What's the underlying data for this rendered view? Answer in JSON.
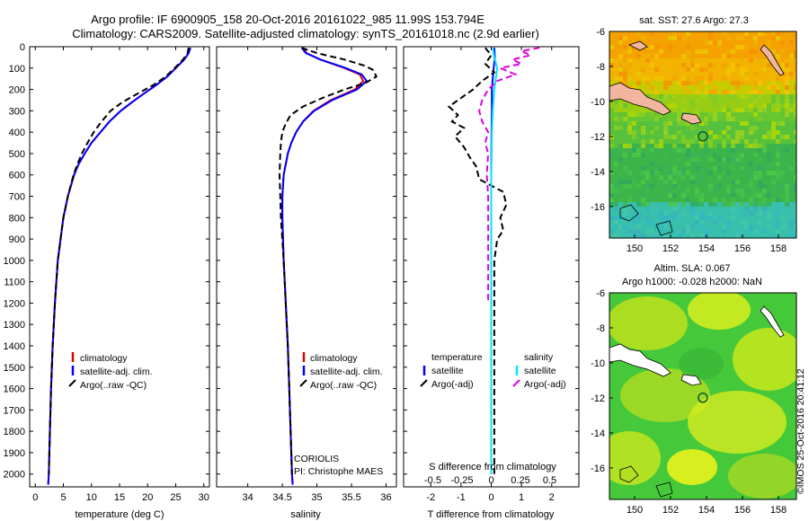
{
  "title": {
    "line1": "Argo profile: IF 6900905_158 20-Oct-2016 20161022_985 11.99S 153.794E",
    "line2": "Climatology: CARS2009. Satellite-adjusted climatology: synTS_20161018.nc (2.9d earlier)"
  },
  "depth_axis": {
    "ticks": [
      0,
      100,
      200,
      300,
      400,
      500,
      600,
      700,
      800,
      900,
      1000,
      1100,
      1200,
      1300,
      1400,
      1500,
      1600,
      1700,
      1800,
      1900,
      2000
    ],
    "range": [
      0,
      2060
    ]
  },
  "colors": {
    "climatology": "#e00000",
    "satellite": "#0000ff",
    "argo": "#000000",
    "sal_sat": "#00e5ff",
    "sal_argo": "#e000e0"
  },
  "chart_data": [
    {
      "type": "line",
      "xlabel": "temperature (deg C)",
      "xlim": [
        -1,
        31
      ],
      "xticks": [
        0,
        5,
        10,
        15,
        20,
        25,
        30
      ],
      "legend": [
        "climatology",
        "satellite-adj. clim.",
        "Argo(..raw -QC)"
      ],
      "series": [
        {
          "name": "climatology",
          "color": "#e00000",
          "depth": [
            5,
            30,
            60,
            100,
            140,
            180,
            220,
            260,
            300,
            350,
            400,
            450,
            500,
            550,
            600,
            700,
            800,
            900,
            1000,
            1200,
            1400,
            1600,
            1800,
            2000,
            2050
          ],
          "values": [
            27.6,
            27.3,
            26.5,
            25.0,
            23.5,
            21.5,
            19.3,
            17.2,
            15.2,
            13.2,
            11.6,
            10.0,
            8.8,
            7.7,
            6.9,
            5.8,
            5.0,
            4.5,
            4.0,
            3.5,
            3.1,
            2.8,
            2.6,
            2.4,
            2.3
          ]
        },
        {
          "name": "satellite-adj. clim.",
          "color": "#0000ff",
          "depth": [
            5,
            30,
            60,
            100,
            140,
            180,
            220,
            260,
            300,
            350,
            400,
            450,
            500,
            550,
            600,
            700,
            800,
            900,
            1000,
            1200,
            1400,
            1600,
            1800,
            2000,
            2050
          ],
          "values": [
            27.6,
            27.3,
            26.5,
            25.0,
            23.5,
            21.5,
            19.3,
            17.2,
            15.2,
            13.2,
            11.6,
            10.0,
            8.8,
            7.7,
            6.9,
            5.8,
            5.0,
            4.5,
            4.0,
            3.5,
            3.1,
            2.8,
            2.6,
            2.4,
            2.3
          ]
        },
        {
          "name": "Argo(..raw -QC)",
          "color": "#000000",
          "dashed": true,
          "depth": [
            5,
            30,
            60,
            100,
            140,
            180,
            220,
            260,
            300,
            350,
            400,
            450,
            500,
            550,
            600,
            700,
            800,
            900,
            1000,
            1200,
            1400,
            1600,
            1800,
            2000
          ],
          "values": [
            27.3,
            27.1,
            26.3,
            24.8,
            23.2,
            21.0,
            18.2,
            15.5,
            13.4,
            11.8,
            10.4,
            9.3,
            8.3,
            7.5,
            6.8,
            5.8,
            5.0,
            4.5,
            4.0,
            3.5,
            3.1,
            2.8,
            2.6,
            2.4
          ]
        }
      ]
    },
    {
      "type": "line",
      "xlabel": "salinity",
      "xlim": [
        33.55,
        36.15
      ],
      "xticks": [
        34,
        34.5,
        35,
        35.5,
        36
      ],
      "xticklabels": [
        "34",
        "34.5",
        "35",
        "35.5",
        "36"
      ],
      "legend": [
        "climatology",
        "satellite-adj. clim.",
        "Argo(..raw -QC)"
      ],
      "credit": [
        "CORIOLIS",
        "PI: Christophe MAES"
      ],
      "series": [
        {
          "name": "climatology",
          "color": "#e00000",
          "depth": [
            5,
            30,
            60,
            100,
            130,
            160,
            200,
            250,
            300,
            350,
            400,
            450,
            500,
            600,
            700,
            800,
            1000,
            1200,
            1400,
            1600,
            1800,
            2000,
            2050
          ],
          "values": [
            34.8,
            34.85,
            35.05,
            35.4,
            35.62,
            35.67,
            35.55,
            35.2,
            34.95,
            34.8,
            34.7,
            34.63,
            34.58,
            34.52,
            34.5,
            34.5,
            34.52,
            34.55,
            34.58,
            34.6,
            34.62,
            34.64,
            34.65
          ]
        },
        {
          "name": "satellite-adj. clim.",
          "color": "#0000ff",
          "depth": [
            5,
            30,
            60,
            100,
            130,
            160,
            200,
            250,
            300,
            350,
            400,
            450,
            500,
            600,
            700,
            800,
            1000,
            1200,
            1400,
            1600,
            1800,
            2000,
            2050
          ],
          "values": [
            34.78,
            34.84,
            35.05,
            35.42,
            35.65,
            35.72,
            35.58,
            35.22,
            34.96,
            34.8,
            34.7,
            34.63,
            34.58,
            34.52,
            34.5,
            34.5,
            34.52,
            34.55,
            34.58,
            34.6,
            34.62,
            34.64,
            34.65
          ]
        },
        {
          "name": "Argo(..raw -QC)",
          "color": "#000000",
          "dashed": true,
          "depth": [
            5,
            30,
            60,
            90,
            110,
            140,
            170,
            200,
            240,
            280,
            320,
            360,
            400,
            450,
            500,
            600,
            700,
            800,
            1000,
            1200,
            1400,
            1600,
            1800,
            2000
          ],
          "values": [
            34.78,
            35.0,
            35.4,
            35.7,
            35.82,
            35.86,
            35.7,
            35.4,
            35.08,
            34.8,
            34.62,
            34.55,
            34.5,
            34.48,
            34.47,
            34.46,
            34.47,
            34.48,
            34.52,
            34.55,
            34.58,
            34.6,
            34.62,
            34.64
          ]
        }
      ]
    },
    {
      "type": "line",
      "xlabel": "T difference from climatology",
      "xlabel_top": "S difference from climatology",
      "xlim": [
        -2.9,
        2.9
      ],
      "xticks": [
        -2,
        -1,
        0,
        1,
        2
      ],
      "top_ticklabels": [
        "-0.5",
        "-0.25",
        "0",
        "0.25",
        "0.5"
      ],
      "legend_temperature": [
        "temperature",
        "satellite",
        "Argo(-adj)"
      ],
      "legend_salinity": [
        "salinity",
        "satellite",
        "Argo(-adj)"
      ],
      "series": [
        {
          "name": "temperature satellite",
          "color": "#0000ff",
          "depth": [
            5,
            50,
            100,
            150,
            200,
            300,
            400,
            600,
            800,
            1000,
            1500,
            2000
          ],
          "values": [
            0.1,
            0.12,
            0.08,
            0.05,
            0.02,
            0.02,
            0.01,
            0.0,
            0.0,
            0.0,
            0.0,
            0.0
          ]
        },
        {
          "name": "temperature Argo(-adj)",
          "color": "#000000",
          "dashed": true,
          "depth": [
            5,
            40,
            80,
            120,
            160,
            200,
            240,
            280,
            320,
            350,
            380,
            420,
            470,
            520,
            560,
            620,
            680,
            740,
            800,
            860,
            900,
            1000,
            1200,
            1400,
            1600,
            1800,
            2000
          ],
          "values": [
            -0.2,
            0.0,
            -0.2,
            0.1,
            -0.3,
            -0.6,
            -1.0,
            -1.4,
            -1.1,
            -1.3,
            -0.9,
            -1.2,
            -0.9,
            -0.7,
            -0.5,
            -0.4,
            0.4,
            0.5,
            0.3,
            0.4,
            0.2,
            0.1,
            0.1,
            0.1,
            0.1,
            0.1,
            0.1
          ]
        },
        {
          "name": "salinity satellite",
          "color": "#00e5ff",
          "depth": [
            5,
            50,
            100,
            200,
            300,
            400,
            600,
            800,
            1000,
            1500,
            2000
          ],
          "values": [
            0.05,
            0.1,
            0.2,
            0.1,
            0.05,
            0.02,
            0.0,
            0.0,
            0.0,
            0.0,
            0.0
          ]
        },
        {
          "name": "salinity Argo(-adj)",
          "color": "#e000e0",
          "dashed": true,
          "depth": [
            5,
            20,
            40,
            60,
            80,
            100,
            130,
            160,
            200,
            250,
            300,
            350,
            400,
            450,
            500,
            600,
            700,
            800,
            900,
            1000,
            1100,
            1200
          ],
          "values": [
            1.6,
            1.0,
            1.3,
            0.7,
            1.0,
            0.3,
            0.8,
            0.2,
            -0.1,
            -0.3,
            -0.4,
            -0.3,
            -0.1,
            -0.2,
            -0.1,
            -0.15,
            -0.1,
            -0.1,
            -0.1,
            -0.1,
            -0.1,
            -0.1
          ]
        }
      ]
    },
    {
      "type": "heatmap",
      "title": "sat. SST: 27.6 Argo: 27.3",
      "xlim": [
        148.6,
        159
      ],
      "ylim": [
        -17.8,
        -6
      ],
      "xticks": [
        150,
        152,
        154,
        156,
        158
      ],
      "yticks": [
        -6,
        -8,
        -10,
        -12,
        -14,
        -16
      ],
      "marker": {
        "lon": 153.794,
        "lat": -11.99
      }
    },
    {
      "type": "heatmap",
      "title": "Altim. SLA: 0.067",
      "subtitle": "Argo h1000: -0.028 h2000: NaN",
      "xlim": [
        148.6,
        159
      ],
      "ylim": [
        -17.8,
        -6
      ],
      "xticks": [
        150,
        152,
        154,
        156,
        158
      ],
      "yticks": [
        -6,
        -8,
        -10,
        -12,
        -14,
        -16
      ],
      "marker": {
        "lon": 153.794,
        "lat": -11.99
      }
    }
  ],
  "watermark": "©IMOS 25-Oct-2016 20:41:12"
}
